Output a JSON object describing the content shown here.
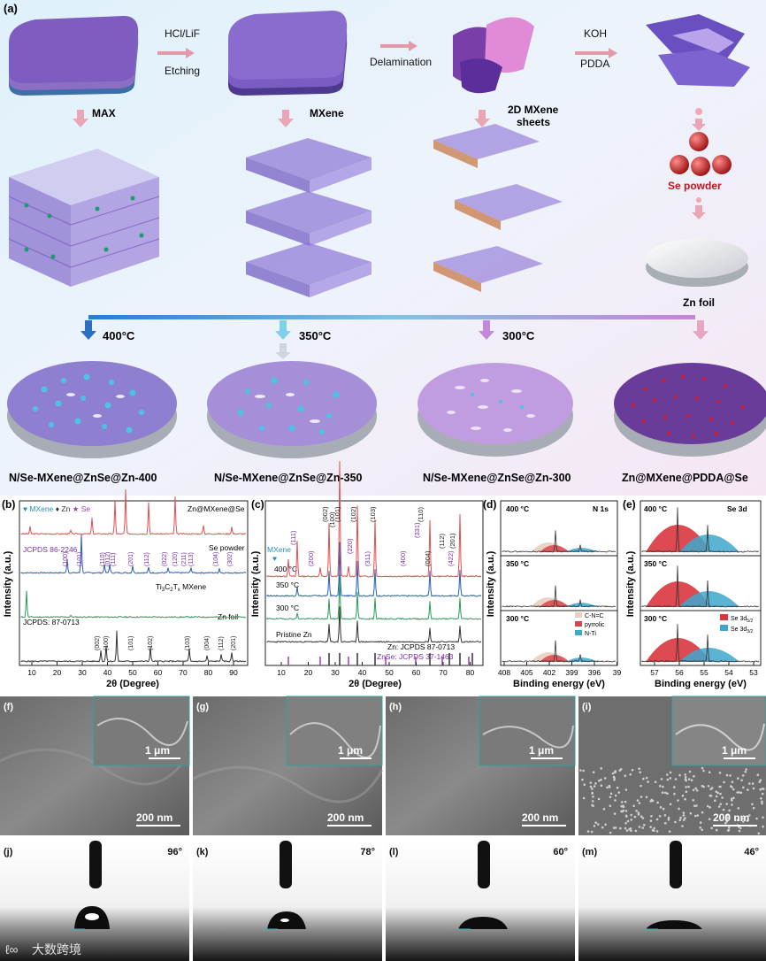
{
  "panel_a": {
    "letter": "(a)",
    "step1": {
      "top": "HCl/LiF",
      "bottom": "Etching"
    },
    "step2": "Delamination",
    "step3": {
      "top": "KOH",
      "bottom": "PDDA"
    },
    "max": "MAX",
    "mxene": "MXene",
    "sheets": [
      "2D MXene",
      "sheets"
    ],
    "se_powder": "Se powder",
    "zn_foil": "Zn foil",
    "temps": [
      "400°C",
      "350°C",
      "300°C"
    ],
    "products": [
      "N/Se-MXene@ZnSe@Zn-400",
      "N/Se-MXene@ZnSe@Zn-350",
      "N/Se-MXene@ZnSe@Zn-300",
      "Zn@MXene@PDDA@Se"
    ]
  },
  "panel_b": {
    "letter": "(b)",
    "legend": [
      "MXene",
      "Zn",
      "Se"
    ],
    "traces": [
      "Zn@MXene@Se",
      "Se powder",
      "Ti3C2Tx MXene",
      "Zn foil"
    ],
    "se_ref": "JCPDS 86-2246",
    "zn_ref": "JCPDS: 87-0713",
    "se_hkl": [
      "(100)",
      "(101)",
      "(110)",
      "(012)",
      "(111)",
      "(201)",
      "(112)",
      "(022)",
      "(120)",
      "(211)",
      "(113)",
      "(104)",
      "(302)"
    ],
    "zn_hkl": [
      "(002)",
      "(100)",
      "(101)",
      "(102)",
      "(103)",
      "(004)",
      "(112)",
      "(201)"
    ],
    "xlabel": "2θ (Degree)",
    "ylabel": "Intensity (a.u.)",
    "xticks": [
      "10",
      "20",
      "30",
      "40",
      "50",
      "60",
      "70",
      "80",
      "90"
    ]
  },
  "panel_c": {
    "letter": "(c)",
    "legend": "MXene",
    "traces": [
      "400 °C",
      "350 °C",
      "300 °C",
      "Pristine Zn"
    ],
    "hkl": [
      "(002)",
      "(101)",
      "(102)",
      "(103)",
      "(111)",
      "(100)",
      "(220)",
      "(110)",
      "(200)",
      "(311)",
      "(400)",
      "(331)",
      "(004)",
      "(112)",
      "(201)",
      "(422)"
    ],
    "ref_zn": "Zn: JCPDS 87-0713",
    "ref_znse": "ZnSe: JCPDS 37-1463",
    "xlabel": "2θ (Degree)",
    "ylabel": "Intensity (a.u.)",
    "xticks": [
      "10",
      "20",
      "30",
      "40",
      "50",
      "60",
      "70",
      "80"
    ]
  },
  "panel_d": {
    "letter": "(d)",
    "title": "N 1s",
    "temps": [
      "400 °C",
      "350 °C",
      "300 °C"
    ],
    "legend": [
      "C-N=C",
      "pyrrolic",
      "N-Ti"
    ],
    "xlabel": "Binding energy (eV)",
    "ylabel": "Intensity (a.u.)",
    "xticks": [
      "408",
      "405",
      "402",
      "399",
      "396",
      "39"
    ]
  },
  "panel_e": {
    "letter": "(e)",
    "title": "Se 3d",
    "temps": [
      "400 °C",
      "350 °C",
      "300 °C"
    ],
    "legend": [
      "Se 3d",
      "Se 3d"
    ],
    "legend_sub": [
      "5/2",
      "3/2"
    ],
    "xlabel": "Binding energy (eV)",
    "ylabel": "Intensity (a.u.)",
    "xticks": [
      "57",
      "56",
      "55",
      "54",
      "53"
    ]
  },
  "sem": {
    "letters": [
      "(f)",
      "(g)",
      "(h)",
      "(i)"
    ],
    "inset_scale": "1 μm",
    "main_scale": "200 nm"
  },
  "contact": {
    "letters": [
      "(j)",
      "(k)",
      "(l)",
      "(m)"
    ],
    "angles": [
      "96°",
      "78°",
      "60°",
      "46°"
    ]
  },
  "watermark": "大数跨境"
}
